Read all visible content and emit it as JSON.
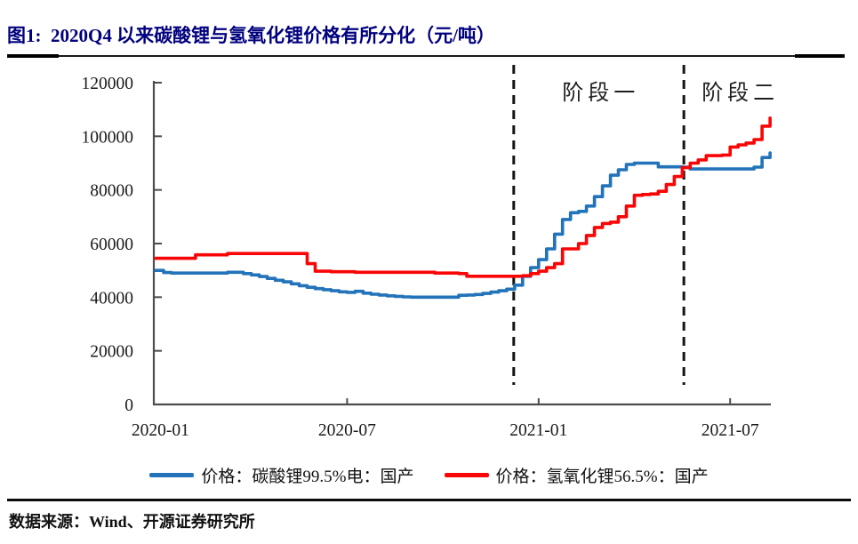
{
  "figure": {
    "title": "图1:  2020Q4 以来碳酸锂与氢氧化锂价格有所分化（元/吨）",
    "source_note": "数据来源：Wind、开源证券研究所"
  },
  "legend": [
    {
      "label": "价格：碳酸锂99.5%电：国产",
      "color": "#2273B9"
    },
    {
      "label": "价格：氢氧化锂56.5%：国产",
      "color": "#FA0505"
    }
  ],
  "colors": {
    "axis": "#4D4D4D",
    "tick_text": "#1A1A1A",
    "title": "#00007F",
    "dashed_line": "#141414",
    "carbonate_blue": "#2273B9",
    "hydroxide_red": "#FA0505"
  },
  "chart_data": {
    "type": "line",
    "title": "2020Q4 以来碳酸锂与氢氧化锂价格有所分化",
    "unit": "元/吨",
    "x_unit": "months since 2020-01 (0 = 2020-01, weekly-step data)",
    "ylim": [
      0,
      120000
    ],
    "yticks": [
      0,
      20000,
      40000,
      60000,
      80000,
      100000,
      120000
    ],
    "xticks": [
      {
        "m": 0.15,
        "label": "2020-01",
        "tick": false
      },
      {
        "m": 6,
        "label": "2020-07",
        "tick": true
      },
      {
        "m": 12,
        "label": "2021-01",
        "tick": true
      },
      {
        "m": 18,
        "label": "2021-07",
        "tick": true
      }
    ],
    "grid": false,
    "legend_position": "bottom",
    "vlines": [
      11.22,
      16.55
    ],
    "annotations": [
      {
        "label": "阶段一",
        "m": 13.95
      },
      {
        "label": "阶段二",
        "m": 18.32
      }
    ],
    "x": [
      0,
      0.25,
      0.5,
      0.75,
      1,
      1.25,
      1.5,
      1.75,
      2,
      2.25,
      2.5,
      2.75,
      3,
      3.25,
      3.5,
      3.75,
      4,
      4.25,
      4.5,
      4.75,
      5,
      5.25,
      5.5,
      5.75,
      6,
      6.25,
      6.5,
      6.75,
      7,
      7.25,
      7.5,
      7.75,
      8,
      8.25,
      8.5,
      8.75,
      9,
      9.25,
      9.5,
      9.75,
      10,
      10.25,
      10.5,
      10.75,
      11,
      11.25,
      11.5,
      11.75,
      12,
      12.25,
      12.5,
      12.75,
      13,
      13.25,
      13.5,
      13.75,
      14,
      14.25,
      14.5,
      14.75,
      15,
      15.25,
      15.5,
      15.75,
      16,
      16.25,
      16.5,
      16.75,
      17,
      17.25,
      17.5,
      17.75,
      18,
      18.25,
      18.5,
      18.75,
      19,
      19.25
    ],
    "series": [
      {
        "name": "价格：碳酸锂99.5%电：国产",
        "color": "#2273B9",
        "values": [
          50000,
          49200,
          49000,
          49000,
          49000,
          49000,
          49000,
          49000,
          49000,
          49300,
          49300,
          48800,
          48300,
          47700,
          47000,
          46300,
          45700,
          45000,
          44300,
          43700,
          43200,
          42800,
          42400,
          42000,
          41800,
          42200,
          41500,
          41100,
          40800,
          40500,
          40300,
          40100,
          40000,
          40000,
          40000,
          40000,
          40000,
          40000,
          40700,
          40800,
          41000,
          41400,
          41900,
          42400,
          43000,
          44500,
          47800,
          51000,
          54000,
          58000,
          63500,
          69000,
          71500,
          72000,
          74000,
          77500,
          81500,
          85500,
          87500,
          89500,
          90000,
          90000,
          90000,
          88600,
          88600,
          88600,
          88500,
          87800,
          87800,
          87800,
          87800,
          87800,
          87800,
          87800,
          87800,
          88500,
          92100,
          93800
        ]
      },
      {
        "name": "价格：氢氧化锂56.5%：国产",
        "color": "#FA0505",
        "values": [
          54500,
          54500,
          54500,
          54500,
          54500,
          55800,
          55800,
          55800,
          55800,
          56300,
          56300,
          56300,
          56300,
          56300,
          56300,
          56300,
          56300,
          56300,
          56300,
          52500,
          49700,
          49700,
          49500,
          49500,
          49500,
          49300,
          49300,
          49300,
          49300,
          49300,
          49300,
          49300,
          49300,
          49300,
          49300,
          49000,
          49000,
          49000,
          48800,
          47800,
          47800,
          47800,
          47800,
          47800,
          47800,
          47800,
          48000,
          48800,
          49700,
          51000,
          52500,
          58000,
          58000,
          60000,
          63000,
          66000,
          67500,
          68000,
          70000,
          74000,
          78000,
          78300,
          78500,
          79500,
          82000,
          85000,
          88300,
          90000,
          91200,
          92800,
          92800,
          93000,
          96000,
          96800,
          97500,
          98800,
          103800,
          106800
        ]
      }
    ]
  }
}
